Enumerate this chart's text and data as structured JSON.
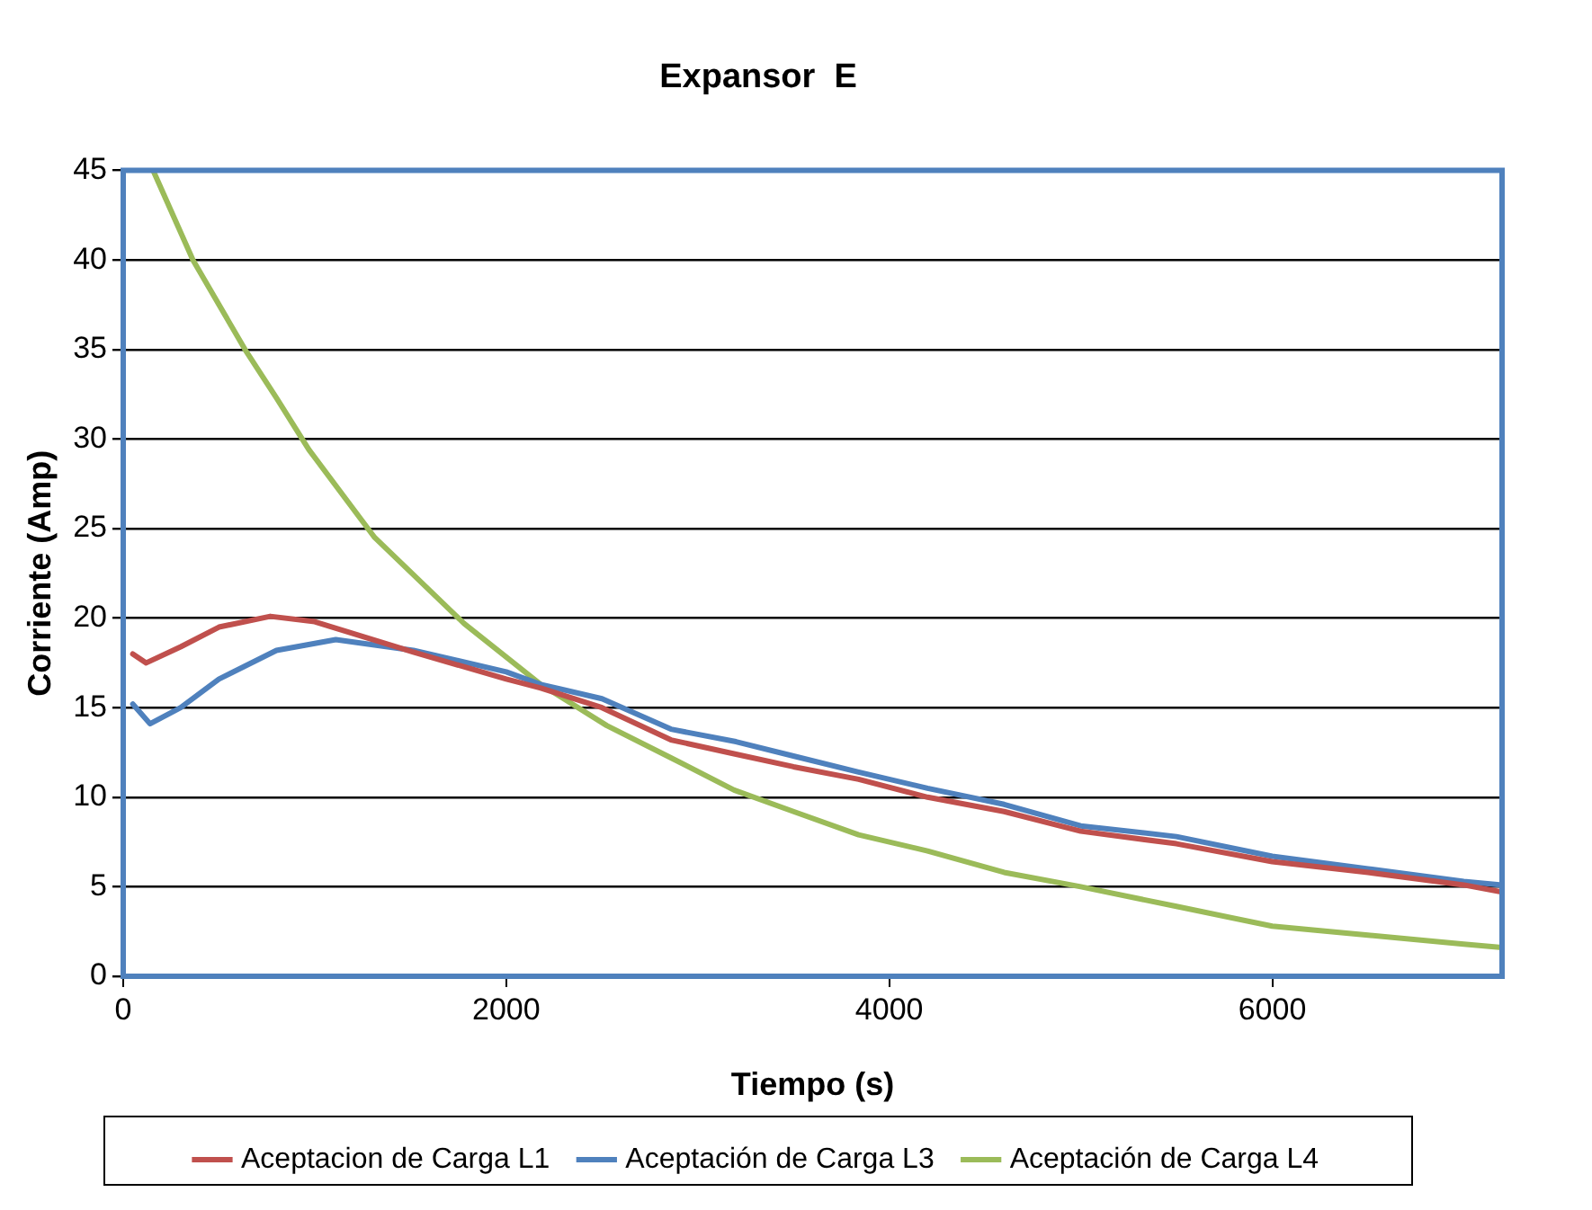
{
  "chart_data": {
    "type": "line",
    "title": "Expansor  E",
    "xlabel": "Tiempo (s)",
    "ylabel": "Corriente (Amp)",
    "xlim": [
      0,
      7200
    ],
    "xticks": [
      0,
      2000,
      4000,
      6000
    ],
    "ylim": [
      0,
      45
    ],
    "yticks": [
      0,
      5,
      10,
      15,
      20,
      25,
      30,
      35,
      40,
      45
    ],
    "grid": "y",
    "legend": "bottom",
    "marker": "none",
    "line_style": "solid",
    "series": [
      {
        "name": "Aceptacion de Carga L1",
        "color": "#c0504d",
        "x": [
          50,
          120,
          300,
          500,
          768,
          1000,
          1515,
          2000,
          2180,
          2500,
          2860,
          3200,
          3500,
          3840,
          4200,
          4600,
          5000,
          5500,
          6000,
          6500,
          7000,
          7200
        ],
        "values": [
          18.0,
          17.5,
          18.4,
          19.5,
          20.1,
          19.8,
          18.1,
          16.6,
          16.1,
          15.0,
          13.2,
          12.4,
          11.7,
          11.0,
          10.0,
          9.2,
          8.1,
          7.4,
          6.4,
          5.8,
          5.1,
          4.7
        ]
      },
      {
        "name": "Aceptación de Carga L3",
        "color": "#4f81bd",
        "x": [
          50,
          140,
          300,
          500,
          800,
          1110,
          1515,
          2000,
          2180,
          2500,
          2860,
          3200,
          3500,
          3840,
          4200,
          4600,
          5000,
          5500,
          6000,
          6500,
          7000,
          7200
        ],
        "values": [
          15.2,
          14.1,
          15.0,
          16.6,
          18.2,
          18.8,
          18.2,
          17.0,
          16.3,
          15.5,
          13.8,
          13.1,
          12.3,
          11.4,
          10.5,
          9.6,
          8.4,
          7.8,
          6.7,
          6.0,
          5.3,
          5.1
        ]
      },
      {
        "name": "Aceptación de Carga L4",
        "color": "#9bbb59",
        "x": [
          160,
          364,
          636,
          800,
          970,
          1313,
          1780,
          2180,
          2525,
          2860,
          3190,
          3500,
          3840,
          4200,
          4600,
          5000,
          5500,
          6000,
          6500,
          7000,
          7200
        ],
        "values": [
          44.9,
          40.0,
          35.0,
          32.3,
          29.4,
          24.5,
          19.7,
          16.3,
          14.0,
          12.2,
          10.4,
          9.2,
          7.9,
          7.0,
          5.8,
          5.0,
          3.9,
          2.8,
          2.3,
          1.8,
          1.6
        ]
      }
    ]
  }
}
